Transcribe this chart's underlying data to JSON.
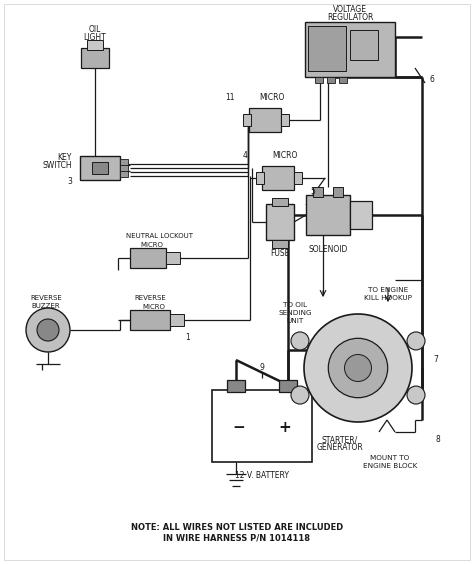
{
  "bg_color": "#ffffff",
  "lc": "#1a1a1a",
  "fig_width": 4.74,
  "fig_height": 5.64,
  "dpi": 100,
  "note_line1": "NOTE: ALL WIRES NOT LISTED ARE INCLUDED",
  "note_line2": "IN WIRE HARNESS P/N 1014118",
  "xlim": [
    0,
    474
  ],
  "ylim": [
    0,
    564
  ]
}
